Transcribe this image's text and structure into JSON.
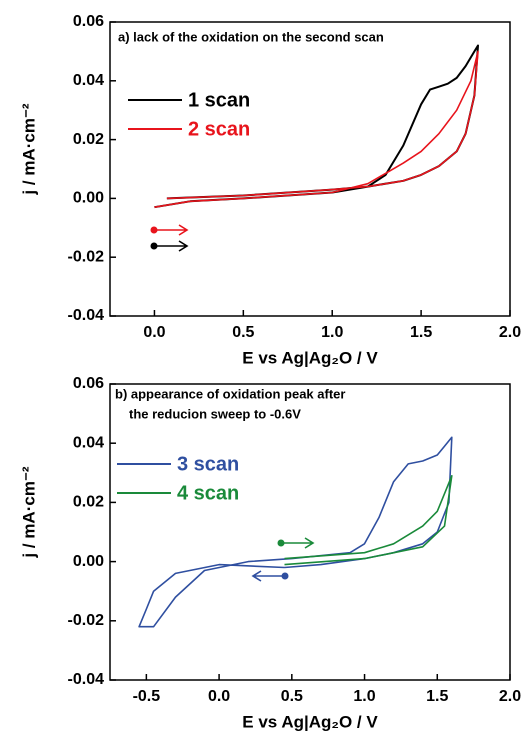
{
  "chart_data": [
    {
      "type": "line",
      "title": "a) lack of the oxidation on the second scan",
      "xlabel": "E vs Ag|Ag₂O / V",
      "ylabel": "j / mA·cm⁻²",
      "xlim": [
        -0.25,
        2.0
      ],
      "xticks": [
        {
          "value": 0,
          "label": "0.0"
        },
        0.5,
        {
          "value": 1,
          "label": "1.0"
        },
        1.5,
        {
          "value": 2,
          "label": "2.0"
        }
      ],
      "ylim": [
        -0.04,
        0.06
      ],
      "yticks": [
        {
          "value": -0.04,
          "label": "-0.04"
        },
        {
          "value": -0.02,
          "label": "-0.02"
        },
        {
          "value": 0,
          "label": "0.00"
        },
        {
          "value": 0.02,
          "label": "0.02"
        },
        {
          "value": 0.04,
          "label": "0.04"
        },
        {
          "value": 0.06,
          "label": "0.06"
        }
      ],
      "legend": "upper left",
      "series": [
        {
          "name": "1 scan",
          "color": "#000000",
          "x": [
            0.0,
            0.2,
            0.5,
            1.0,
            1.2,
            1.3,
            1.4,
            1.5,
            1.55,
            1.6,
            1.65,
            1.7,
            1.75,
            1.8,
            1.82,
            1.8,
            1.75,
            1.7,
            1.6,
            1.5,
            1.4,
            1.2,
            1.0,
            0.5,
            0.07
          ],
          "values": [
            -0.003,
            -0.001,
            0.0,
            0.002,
            0.004,
            0.008,
            0.018,
            0.032,
            0.037,
            0.038,
            0.039,
            0.041,
            0.045,
            0.05,
            0.052,
            0.035,
            0.022,
            0.016,
            0.011,
            0.008,
            0.006,
            0.004,
            0.003,
            0.001,
            0.0
          ]
        },
        {
          "name": "2 scan",
          "color": "#e8141c",
          "x": [
            0.0,
            0.2,
            0.5,
            1.0,
            1.2,
            1.4,
            1.5,
            1.6,
            1.7,
            1.78,
            1.82,
            1.8,
            1.75,
            1.7,
            1.6,
            1.5,
            1.4,
            1.2,
            1.0,
            0.5,
            0.07
          ],
          "values": [
            -0.003,
            -0.001,
            0.0,
            0.002,
            0.005,
            0.012,
            0.016,
            0.022,
            0.03,
            0.04,
            0.05,
            0.035,
            0.022,
            0.016,
            0.011,
            0.008,
            0.006,
            0.004,
            0.003,
            0.001,
            0.0
          ]
        }
      ]
    },
    {
      "type": "line",
      "title": [
        "b) appearance of oxidation peak after",
        "the reducion sweep to -0.6V"
      ],
      "xlabel": "E vs Ag|Ag₂O / V",
      "ylabel": "j / mA·cm⁻²",
      "xlim": [
        -0.75,
        2.0
      ],
      "xticks": [
        -0.5,
        {
          "value": 0,
          "label": "0.0"
        },
        0.5,
        {
          "value": 1,
          "label": "1.0"
        },
        1.5,
        {
          "value": 2,
          "label": "2.0"
        }
      ],
      "ylim": [
        -0.04,
        0.06
      ],
      "yticks": [
        {
          "value": -0.04,
          "label": "-0.04"
        },
        {
          "value": -0.02,
          "label": "-0.02"
        },
        {
          "value": 0,
          "label": "0.00"
        },
        {
          "value": 0.02,
          "label": "0.02"
        },
        {
          "value": 0.04,
          "label": "0.04"
        },
        {
          "value": 0.06,
          "label": "0.06"
        }
      ],
      "legend": "upper left",
      "series": [
        {
          "name": "3 scan",
          "color": "#2f4fa0",
          "x": [
            0.45,
            0.0,
            -0.3,
            -0.45,
            -0.5,
            -0.55,
            -0.45,
            -0.3,
            -0.1,
            0.2,
            0.5,
            0.9,
            1.0,
            1.1,
            1.2,
            1.3,
            1.4,
            1.5,
            1.55,
            1.6,
            1.58,
            1.5,
            1.4,
            1.2,
            1.0,
            0.7,
            0.45
          ],
          "values": [
            -0.002,
            -0.001,
            -0.004,
            -0.01,
            -0.016,
            -0.022,
            -0.022,
            -0.012,
            -0.003,
            0.0,
            0.001,
            0.003,
            0.006,
            0.015,
            0.027,
            0.033,
            0.034,
            0.036,
            0.039,
            0.042,
            0.02,
            0.01,
            0.006,
            0.003,
            0.001,
            -0.001,
            -0.002
          ]
        },
        {
          "name": "4 scan",
          "color": "#1a8a3a",
          "x": [
            0.45,
            1.0,
            1.2,
            1.4,
            1.5,
            1.6,
            1.55,
            1.4,
            1.0,
            0.45
          ],
          "values": [
            0.001,
            0.003,
            0.006,
            0.012,
            0.017,
            0.029,
            0.012,
            0.005,
            0.001,
            -0.001
          ]
        }
      ]
    }
  ]
}
